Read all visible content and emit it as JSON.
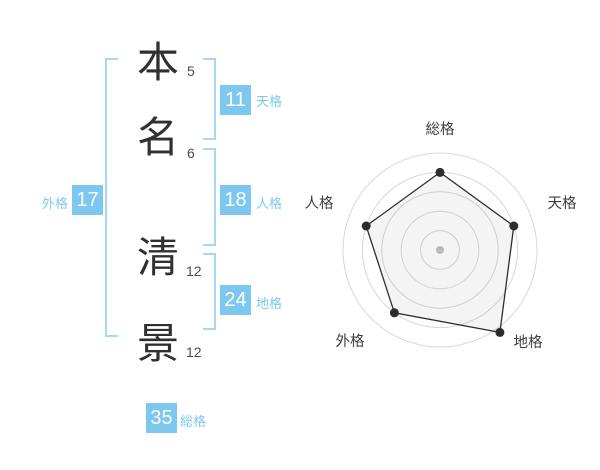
{
  "page": {
    "background_color": "#ffffff",
    "accent_color": "#7dc8f1",
    "bracket_color": "#a8d7f4"
  },
  "name_analysis": {
    "surname": [
      {
        "char": "本",
        "strokes": "5"
      },
      {
        "char": "名",
        "strokes": "6"
      }
    ],
    "given_name": [
      {
        "char": "清",
        "strokes": "12"
      },
      {
        "char": "景",
        "strokes": "12"
      }
    ],
    "categories": {
      "tenkaku": {
        "label": "天格",
        "value": "11"
      },
      "jinkaku": {
        "label": "人格",
        "value": "18"
      },
      "chikaku": {
        "label": "地格",
        "value": "24"
      },
      "gaikaku": {
        "label": "外格",
        "value": "17"
      },
      "soukaku": {
        "label": "総格",
        "value": "35"
      }
    }
  },
  "chart_data": {
    "type": "radar",
    "title": "",
    "axes": [
      "総格",
      "天格",
      "地格",
      "外格",
      "人格"
    ],
    "values": [
      80,
      80,
      105,
      80,
      80
    ],
    "max": 100,
    "rings": [
      20,
      40,
      60,
      80,
      100
    ],
    "start_angle_deg": -90,
    "direction": "clockwise",
    "legend": "none",
    "grid_color": "#d8d8d8",
    "line_color": "#2d2d2d",
    "fill_color": "rgba(60,60,60,0.06)",
    "point_color": "#2d2d2d",
    "center_dot_color": "#c2c2c2",
    "label_color": "#3d3d3d"
  }
}
